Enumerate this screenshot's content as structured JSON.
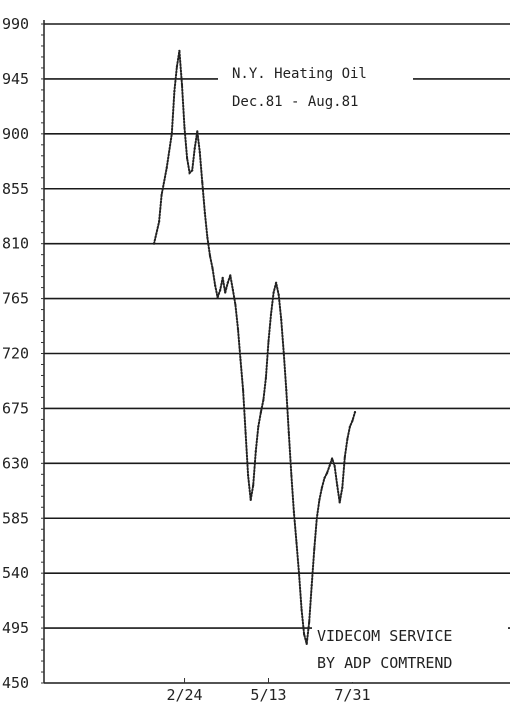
{
  "chart_data": {
    "type": "line",
    "title": "N.Y. Heating Oil",
    "subtitle": "Dec.81 - Aug.81",
    "xlabel": "",
    "ylabel": "",
    "ylim": [
      450,
      990
    ],
    "yticks": [
      "990",
      "945",
      "900",
      "855",
      "810",
      "765",
      "720",
      "675",
      "630",
      "585",
      "540",
      "495",
      "450"
    ],
    "xticks": [
      "2/24",
      "5/13",
      "7/31"
    ],
    "grid": "horizontal",
    "credit_line1": "VIDECOM SERVICE",
    "credit_line2": "BY ADP COMTREND",
    "series": [
      {
        "points": [
          [
            0,
            810
          ],
          [
            2,
            828
          ],
          [
            3,
            850
          ],
          [
            5,
            872
          ],
          [
            7,
            900
          ],
          [
            8,
            935
          ],
          [
            9,
            955
          ],
          [
            10,
            968
          ],
          [
            11,
            940
          ],
          [
            12,
            905
          ],
          [
            13,
            880
          ],
          [
            14,
            868
          ],
          [
            15,
            870
          ],
          [
            16,
            888
          ],
          [
            17,
            902
          ],
          [
            18,
            885
          ],
          [
            19,
            860
          ],
          [
            20,
            835
          ],
          [
            21,
            815
          ],
          [
            22,
            800
          ],
          [
            23,
            790
          ],
          [
            24,
            776
          ],
          [
            25,
            766
          ],
          [
            26,
            772
          ],
          [
            27,
            782
          ],
          [
            28,
            770
          ],
          [
            29,
            778
          ],
          [
            30,
            784
          ],
          [
            31,
            772
          ],
          [
            32,
            760
          ],
          [
            33,
            740
          ],
          [
            34,
            715
          ],
          [
            35,
            690
          ],
          [
            36,
            655
          ],
          [
            37,
            620
          ],
          [
            38,
            600
          ],
          [
            39,
            612
          ],
          [
            40,
            640
          ],
          [
            41,
            660
          ],
          [
            42,
            672
          ],
          [
            43,
            682
          ],
          [
            44,
            700
          ],
          [
            45,
            730
          ],
          [
            46,
            752
          ],
          [
            47,
            770
          ],
          [
            48,
            778
          ],
          [
            49,
            768
          ],
          [
            50,
            748
          ],
          [
            51,
            720
          ],
          [
            52,
            690
          ],
          [
            53,
            655
          ],
          [
            54,
            620
          ],
          [
            55,
            590
          ],
          [
            56,
            565
          ],
          [
            57,
            540
          ],
          [
            58,
            510
          ],
          [
            59,
            490
          ],
          [
            60,
            482
          ],
          [
            61,
            500
          ],
          [
            62,
            530
          ],
          [
            63,
            560
          ],
          [
            64,
            585
          ],
          [
            65,
            600
          ],
          [
            66,
            610
          ],
          [
            67,
            618
          ],
          [
            68,
            622
          ],
          [
            69,
            628
          ],
          [
            70,
            634
          ],
          [
            71,
            628
          ],
          [
            72,
            612
          ],
          [
            73,
            598
          ],
          [
            74,
            610
          ],
          [
            75,
            635
          ],
          [
            76,
            650
          ],
          [
            77,
            660
          ],
          [
            78,
            665
          ],
          [
            79,
            672
          ]
        ]
      }
    ],
    "xticks_at": [
      12,
      45,
      78
    ]
  }
}
